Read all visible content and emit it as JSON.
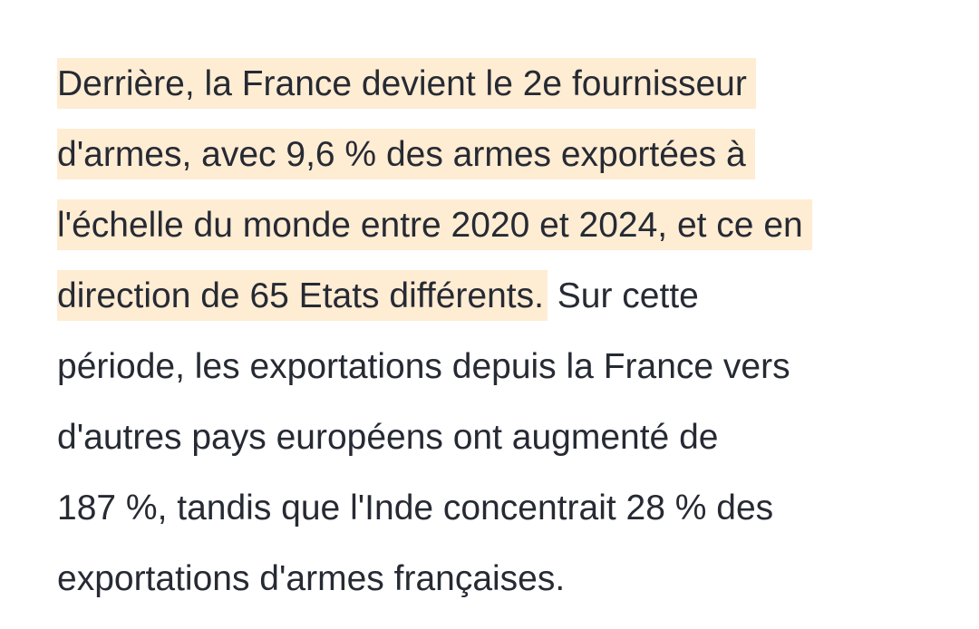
{
  "article": {
    "lines": [
      {
        "highlighted": "Derrière, la France devient le 2e fournisseur",
        "plain": ""
      },
      {
        "highlighted": "d'armes, avec 9,6 % des armes exportées à",
        "plain": ""
      },
      {
        "highlighted": "l'échelle du monde entre 2020 et 2024, et ce en",
        "plain": ""
      },
      {
        "highlighted": "direction de 65 Etats différents.",
        "plain": " Sur cette"
      },
      {
        "highlighted": "",
        "plain": "période, les exportations depuis la France vers"
      },
      {
        "highlighted": "",
        "plain": "d'autres pays européens ont augmenté de"
      },
      {
        "highlighted": "",
        "plain": "187 %, tandis que l'Inde concentrait 28 % des"
      },
      {
        "highlighted": "",
        "plain": "exportations d'armes françaises."
      }
    ],
    "highlight_color": "#feecd3",
    "text_color": "#262a33"
  }
}
